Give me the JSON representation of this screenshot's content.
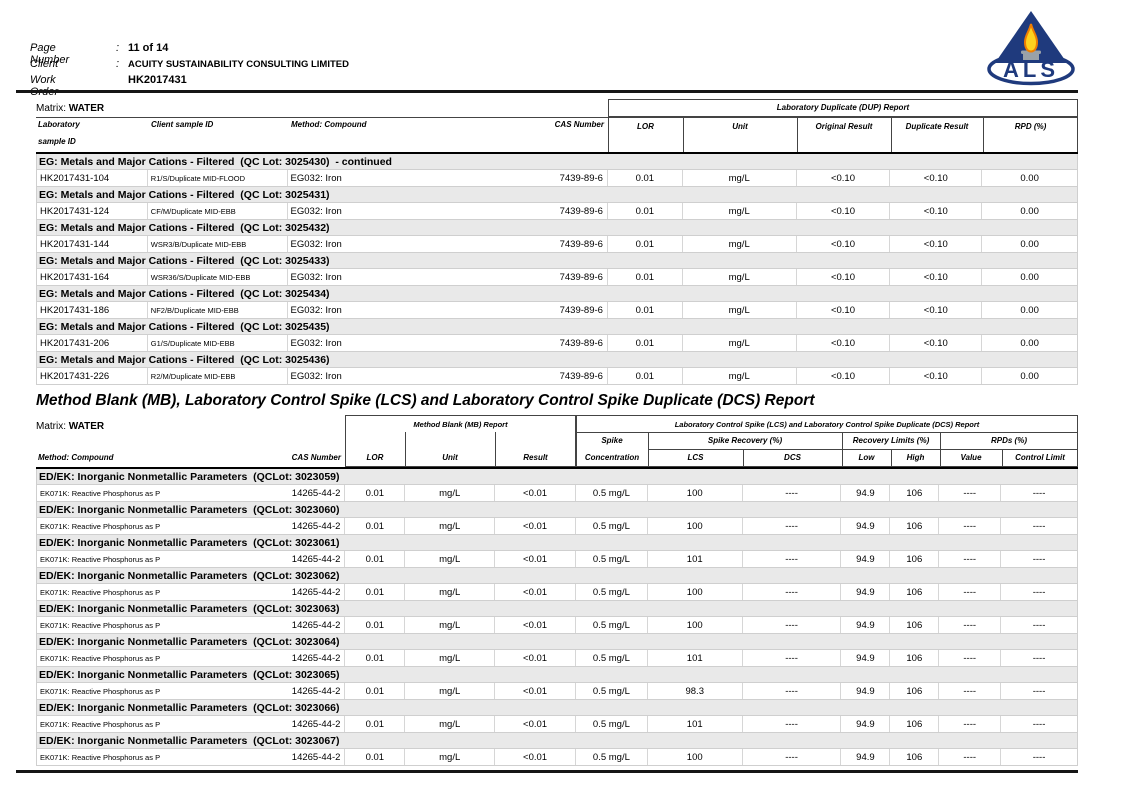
{
  "page_header": {
    "fields": [
      {
        "label": "Page Number",
        "colon": ":",
        "value": "11 of 14"
      },
      {
        "label": "Client",
        "colon": ":",
        "value": "ACUITY SUSTAINABILITY CONSULTING LIMITED"
      },
      {
        "label": "Work Order",
        "colon": "",
        "value": "HK2017431"
      }
    ],
    "logo": {
      "text": "ALS",
      "triangle_color": "#1f3a7d",
      "flame_color": "#ffd21e",
      "flame_outline": "#ef7d00",
      "candle_color": "#9aa1a8"
    }
  },
  "dup_table": {
    "matrix_label": "Matrix: ",
    "matrix_value": "WATER",
    "group_header": "Laboratory Duplicate (DUP) Report",
    "columns": {
      "laboratory_line1": "Laboratory",
      "laboratory_line2": "sample ID",
      "client": "Client sample ID",
      "method": "Method: Compound",
      "cas": "CAS Number",
      "lor": "LOR",
      "unit": "Unit",
      "original": "Original Result",
      "duplicate": "Duplicate Result",
      "rpd": "RPD (%)"
    },
    "sections": [
      {
        "title": "EG: Metals and Major Cations - Filtered  (QC Lot: 3025430)  - continued",
        "rows": [
          {
            "lab_id": "HK2017431-104",
            "client_id": "R1/S/Duplicate MID-FLOOD",
            "method": "EG032: Iron",
            "cas": "7439-89-6",
            "lor": "0.01",
            "unit": "mg/L",
            "original": "<0.10",
            "duplicate": "<0.10",
            "rpd": "0.00"
          }
        ]
      },
      {
        "title": "EG: Metals and Major Cations - Filtered  (QC Lot: 3025431)",
        "rows": [
          {
            "lab_id": "HK2017431-124",
            "client_id": "CF/M/Duplicate MID-EBB",
            "method": "EG032: Iron",
            "cas": "7439-89-6",
            "lor": "0.01",
            "unit": "mg/L",
            "original": "<0.10",
            "duplicate": "<0.10",
            "rpd": "0.00"
          }
        ]
      },
      {
        "title": "EG: Metals and Major Cations - Filtered  (QC Lot: 3025432)",
        "rows": [
          {
            "lab_id": "HK2017431-144",
            "client_id": "WSR3/B/Duplicate MID-EBB",
            "method": "EG032: Iron",
            "cas": "7439-89-6",
            "lor": "0.01",
            "unit": "mg/L",
            "original": "<0.10",
            "duplicate": "<0.10",
            "rpd": "0.00"
          }
        ]
      },
      {
        "title": "EG: Metals and Major Cations - Filtered  (QC Lot: 3025433)",
        "rows": [
          {
            "lab_id": "HK2017431-164",
            "client_id": "WSR36/S/Duplicate MID-EBB",
            "method": "EG032: Iron",
            "cas": "7439-89-6",
            "lor": "0.01",
            "unit": "mg/L",
            "original": "<0.10",
            "duplicate": "<0.10",
            "rpd": "0.00"
          }
        ]
      },
      {
        "title": "EG: Metals and Major Cations - Filtered  (QC Lot: 3025434)",
        "rows": [
          {
            "lab_id": "HK2017431-186",
            "client_id": "NF2/B/Duplicate MID-EBB",
            "method": "EG032: Iron",
            "cas": "7439-89-6",
            "lor": "0.01",
            "unit": "mg/L",
            "original": "<0.10",
            "duplicate": "<0.10",
            "rpd": "0.00"
          }
        ]
      },
      {
        "title": "EG: Metals and Major Cations - Filtered  (QC Lot: 3025435)",
        "rows": [
          {
            "lab_id": "HK2017431-206",
            "client_id": "G1/S/Duplicate MID-EBB",
            "method": "EG032: Iron",
            "cas": "7439-89-6",
            "lor": "0.01",
            "unit": "mg/L",
            "original": "<0.10",
            "duplicate": "<0.10",
            "rpd": "0.00"
          }
        ]
      },
      {
        "title": "EG: Metals and Major Cations - Filtered  (QC Lot: 3025436)",
        "rows": [
          {
            "lab_id": "HK2017431-226",
            "client_id": "R2/M/Duplicate MID-EBB",
            "method": "EG032: Iron",
            "cas": "7439-89-6",
            "lor": "0.01",
            "unit": "mg/L",
            "original": "<0.10",
            "duplicate": "<0.10",
            "rpd": "0.00"
          }
        ]
      }
    ]
  },
  "mb_title": "Method Blank (MB), Laboratory Control Spike (LCS) and Laboratory Control Spike Duplicate (DCS) Report",
  "mb_table": {
    "matrix_label": "Matrix: ",
    "matrix_value": "WATER",
    "group_headers": {
      "mb": "Method Blank (MB) Report",
      "lcs": "Laboratory Control Spike (LCS) and Laboratory Control Spike Duplicate (DCS) Report",
      "spike_line1": "Spike",
      "spike_line2": "Concentration",
      "spike_recovery": "Spike Recovery (%)",
      "recovery_limits": "Recovery Limits (%)",
      "rpds": "RPDs (%)"
    },
    "columns": {
      "method": "Method: Compound",
      "cas": "CAS Number",
      "lor": "LOR",
      "unit": "Unit",
      "result": "Result",
      "lcs": "LCS",
      "dcs": "DCS",
      "low": "Low",
      "high": "High",
      "value": "Value",
      "control_limit": "Control Limit"
    },
    "sections": [
      {
        "title": "ED/EK: Inorganic Nonmetallic Parameters  (QCLot: 3023059)",
        "rows": [
          {
            "compound": "EK071K: Reactive Phosphorus as P",
            "cas": "14265-44-2",
            "lor": "0.01",
            "unit": "mg/L",
            "result": "<0.01",
            "spike_concentration": "0.5 mg/L",
            "lcs": "100",
            "dcs": "----",
            "low": "94.9",
            "high": "106",
            "value": "----",
            "control_limit": "----"
          }
        ]
      },
      {
        "title": "ED/EK: Inorganic Nonmetallic Parameters  (QCLot: 3023060)",
        "rows": [
          {
            "compound": "EK071K: Reactive Phosphorus as P",
            "cas": "14265-44-2",
            "lor": "0.01",
            "unit": "mg/L",
            "result": "<0.01",
            "spike_concentration": "0.5 mg/L",
            "lcs": "100",
            "dcs": "----",
            "low": "94.9",
            "high": "106",
            "value": "----",
            "control_limit": "----"
          }
        ]
      },
      {
        "title": "ED/EK: Inorganic Nonmetallic Parameters  (QCLot: 3023061)",
        "rows": [
          {
            "compound": "EK071K: Reactive Phosphorus as P",
            "cas": "14265-44-2",
            "lor": "0.01",
            "unit": "mg/L",
            "result": "<0.01",
            "spike_concentration": "0.5 mg/L",
            "lcs": "101",
            "dcs": "----",
            "low": "94.9",
            "high": "106",
            "value": "----",
            "control_limit": "----"
          }
        ]
      },
      {
        "title": "ED/EK: Inorganic Nonmetallic Parameters  (QCLot: 3023062)",
        "rows": [
          {
            "compound": "EK071K: Reactive Phosphorus as P",
            "cas": "14265-44-2",
            "lor": "0.01",
            "unit": "mg/L",
            "result": "<0.01",
            "spike_concentration": "0.5 mg/L",
            "lcs": "100",
            "dcs": "----",
            "low": "94.9",
            "high": "106",
            "value": "----",
            "control_limit": "----"
          }
        ]
      },
      {
        "title": "ED/EK: Inorganic Nonmetallic Parameters  (QCLot: 3023063)",
        "rows": [
          {
            "compound": "EK071K: Reactive Phosphorus as P",
            "cas": "14265-44-2",
            "lor": "0.01",
            "unit": "mg/L",
            "result": "<0.01",
            "spike_concentration": "0.5 mg/L",
            "lcs": "100",
            "dcs": "----",
            "low": "94.9",
            "high": "106",
            "value": "----",
            "control_limit": "----"
          }
        ]
      },
      {
        "title": "ED/EK: Inorganic Nonmetallic Parameters  (QCLot: 3023064)",
        "rows": [
          {
            "compound": "EK071K: Reactive Phosphorus as P",
            "cas": "14265-44-2",
            "lor": "0.01",
            "unit": "mg/L",
            "result": "<0.01",
            "spike_concentration": "0.5 mg/L",
            "lcs": "101",
            "dcs": "----",
            "low": "94.9",
            "high": "106",
            "value": "----",
            "control_limit": "----"
          }
        ]
      },
      {
        "title": "ED/EK: Inorganic Nonmetallic Parameters  (QCLot: 3023065)",
        "rows": [
          {
            "compound": "EK071K: Reactive Phosphorus as P",
            "cas": "14265-44-2",
            "lor": "0.01",
            "unit": "mg/L",
            "result": "<0.01",
            "spike_concentration": "0.5 mg/L",
            "lcs": "98.3",
            "dcs": "----",
            "low": "94.9",
            "high": "106",
            "value": "----",
            "control_limit": "----"
          }
        ]
      },
      {
        "title": "ED/EK: Inorganic Nonmetallic Parameters  (QCLot: 3023066)",
        "rows": [
          {
            "compound": "EK071K: Reactive Phosphorus as P",
            "cas": "14265-44-2",
            "lor": "0.01",
            "unit": "mg/L",
            "result": "<0.01",
            "spike_concentration": "0.5 mg/L",
            "lcs": "101",
            "dcs": "----",
            "low": "94.9",
            "high": "106",
            "value": "----",
            "control_limit": "----"
          }
        ]
      },
      {
        "title": "ED/EK: Inorganic Nonmetallic Parameters  (QCLot: 3023067)",
        "rows": [
          {
            "compound": "EK071K: Reactive Phosphorus as P",
            "cas": "14265-44-2",
            "lor": "0.01",
            "unit": "mg/L",
            "result": "<0.01",
            "spike_concentration": "0.5 mg/L",
            "lcs": "100",
            "dcs": "----",
            "low": "94.9",
            "high": "106",
            "value": "----",
            "control_limit": "----"
          }
        ]
      }
    ]
  }
}
